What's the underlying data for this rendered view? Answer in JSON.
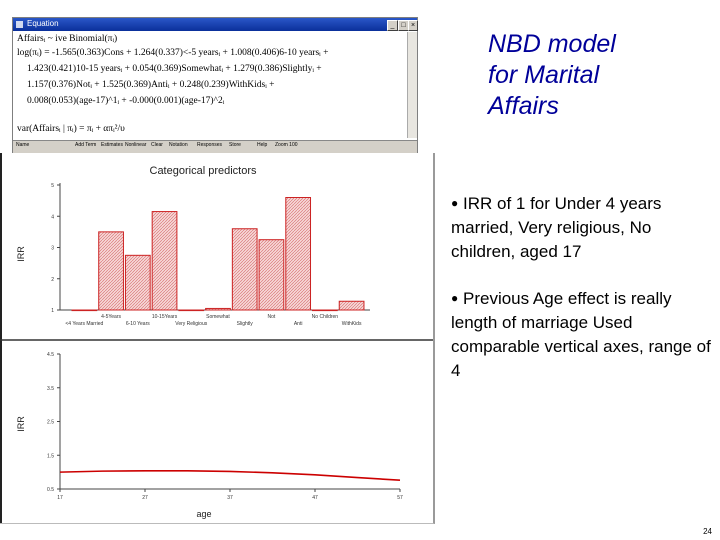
{
  "equation_window": {
    "title": "Equation",
    "lines": [
      "Affairsᵢ ~ ive Binomial(πᵢ)",
      "log(πᵢ) = -1.565(0.363)Cons + 1.264(0.337)<-5 yearsᵢ + 1.008(0.406)6-10 yearsᵢ +",
      "1.423(0.421)10-15 yearsᵢ + 0.054(0.369)Somewhatᵢ + 1.279(0.386)Slightlyᵢ +",
      "1.157(0.376)Notᵢ + 1.525(0.369)Antiᵢ + 0.248(0.239)WithKidsᵢ +",
      "0.008(0.053)(age-17)^1ᵢ + -0.000(0.001)(age-17)^2ᵢ",
      "var(Affairsᵢ | πᵢ) = πᵢ + απᵢ²/υ"
    ],
    "toolbar": [
      "Name",
      "Add Term",
      "Estimates",
      "Nonlinear",
      "Clear",
      "Notation",
      "Responses",
      "Store",
      "Help",
      "Zoom 100"
    ]
  },
  "slide": {
    "title_lines": [
      "NBD model",
      "for Marital",
      "Affairs"
    ],
    "bullets": [
      "IRR of 1 for Under 4 years married, Very religious, No children, aged 17",
      "Previous Age effect is really length of marriage Used comparable vertical axes, range of 4"
    ],
    "page_number": "24"
  },
  "chart_data": [
    {
      "type": "bar",
      "title": "Categorical predictors",
      "ylabel": "IRR",
      "ylim": [
        1,
        5
      ],
      "yticks": [
        1,
        2,
        3,
        4,
        5
      ],
      "categories": [
        "<4 Years Married",
        "4-5Years",
        "6-10 Years",
        "10-15Years",
        "Very Religious",
        "Somewhat",
        "Slightly",
        "Not",
        "Anti",
        "No Children",
        "WithKids"
      ],
      "tick_row1": [
        "4-5Years",
        "10-15Years",
        "Somewhat",
        "Not",
        "No Children"
      ],
      "tick_row2": [
        "<4 Years Married",
        "6-10 Years",
        "Very Religious",
        "Slightly",
        "Anti",
        "WithKids"
      ],
      "values": [
        1,
        3.5,
        2.75,
        4.15,
        1,
        1.05,
        3.6,
        3.25,
        4.6,
        1,
        1.28
      ],
      "colors": {
        "bar": "#cc2222",
        "fill": "#f2c8c8"
      }
    },
    {
      "type": "line",
      "xlabel": "age",
      "ylabel": "IRR",
      "xlim": [
        17,
        57
      ],
      "ylim": [
        0.5,
        4.5
      ],
      "xticks": [
        17,
        27,
        37,
        47,
        57
      ],
      "yticks": [
        0.5,
        1.5,
        2.5,
        3.5,
        4.5
      ],
      "x": [
        17,
        22,
        27,
        32,
        37,
        42,
        47,
        52,
        57
      ],
      "y": [
        1.0,
        1.03,
        1.04,
        1.04,
        1.02,
        0.98,
        0.92,
        0.84,
        0.76
      ],
      "colors": {
        "line": "#cc0000"
      }
    }
  ]
}
